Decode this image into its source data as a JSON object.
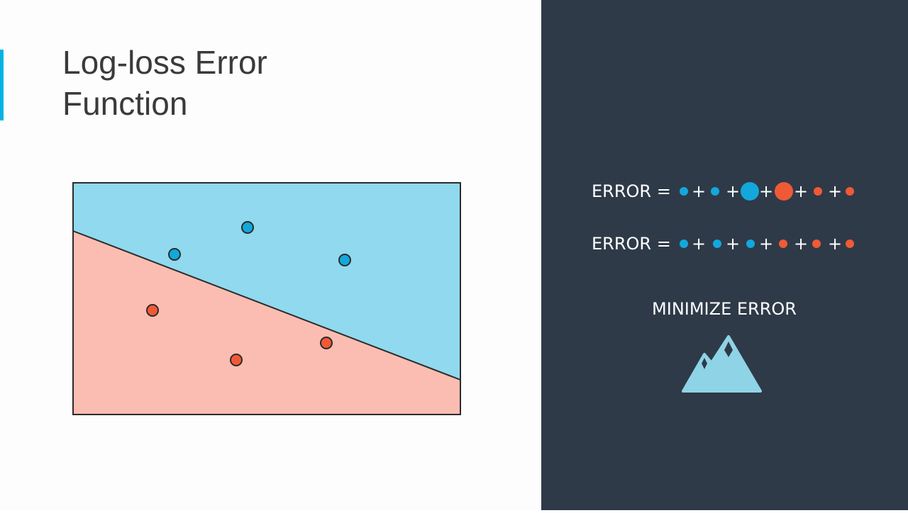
{
  "title": {
    "lines": [
      "Log-loss Error",
      "Function"
    ]
  },
  "equations": [
    {
      "label": "ERROR =",
      "operator": "+"
    },
    {
      "label": "ERROR =",
      "operator": "+"
    }
  ],
  "caption": "MINIMIZE ERROR"
}
